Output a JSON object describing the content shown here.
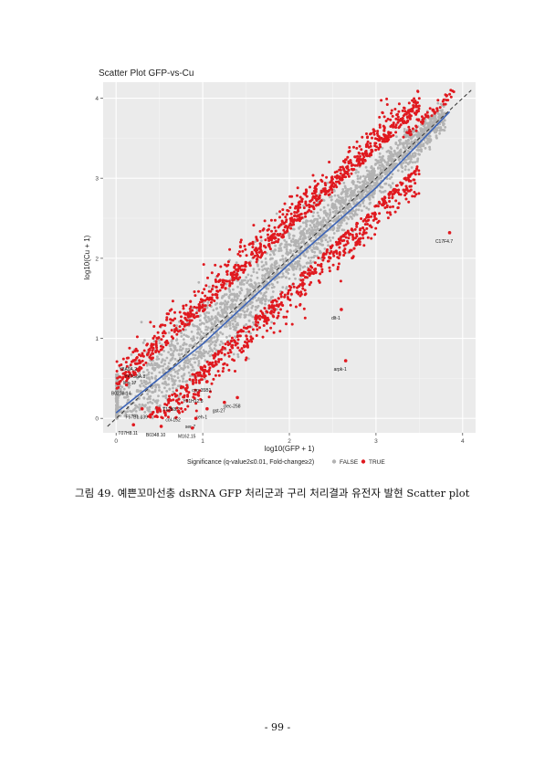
{
  "chart_data": {
    "type": "scatter",
    "title": "Scatter Plot GFP-vs-Cu",
    "xlabel": "log10(GFP + 1)",
    "ylabel": "log10(Cu + 1)",
    "xlim": [
      -0.15,
      4.15
    ],
    "ylim": [
      -0.18,
      4.2
    ],
    "x_ticks": [
      0,
      1,
      2,
      3,
      4
    ],
    "y_ticks": [
      0,
      1,
      2,
      3,
      4
    ],
    "grid": true,
    "background": "#ebebeb",
    "reference_line": {
      "style": "dashed",
      "slope": 1,
      "intercept": 0
    },
    "fit_line": {
      "color": "#3b63b6",
      "points": [
        [
          0,
          0.07
        ],
        [
          1,
          0.93
        ],
        [
          2,
          1.93
        ],
        [
          3,
          2.88
        ],
        [
          3.85,
          3.83
        ]
      ]
    },
    "legend": {
      "title": "Significance (q-value2≤0.01, Fold-change≥2)",
      "placement": "bottom",
      "items": [
        {
          "label": "FALSE",
          "color": "#b3b3b3"
        },
        {
          "label": "TRUE",
          "color": "#e0191f"
        }
      ]
    },
    "series": [
      {
        "name": "FALSE",
        "color": "#b3b3b3",
        "distribution": "dense band around the diagonal, x 0 to 3.8"
      },
      {
        "name": "TRUE",
        "color": "#e0191f",
        "distribution": "points off the diagonal (fold-change ≥ 2), x 0 to 3.9"
      }
    ],
    "annotations": [
      {
        "label": "C17F4.7",
        "x": 3.85,
        "y": 2.32
      },
      {
        "label": "dlt-1",
        "x": 2.6,
        "y": 1.36
      },
      {
        "label": "arpk-1",
        "x": 2.65,
        "y": 0.72
      },
      {
        "label": "Y8A9A.2",
        "x": 0.2,
        "y": 0.72
      },
      {
        "label": "Y47G6A.8",
        "x": 0.28,
        "y": 0.63
      },
      {
        "label": "lips-17",
        "x": 0.22,
        "y": 0.55
      },
      {
        "label": "B0238.14",
        "x": 0.12,
        "y": 0.42
      },
      {
        "label": "clec-258",
        "x": 1.4,
        "y": 0.26
      },
      {
        "label": "cyp-35B1",
        "x": 1.05,
        "y": 0.46
      },
      {
        "label": "Y51H12.8",
        "x": 0.95,
        "y": 0.32
      },
      {
        "label": "gst-27",
        "x": 1.25,
        "y": 0.2
      },
      {
        "label": "T12B3.2",
        "x": 0.7,
        "y": 0.22
      },
      {
        "label": "F57B1.139",
        "x": 0.3,
        "y": 0.12
      },
      {
        "label": "col-152",
        "x": 0.72,
        "y": 0.09
      },
      {
        "label": "ceh-1",
        "x": 1.05,
        "y": 0.12
      },
      {
        "label": "ser-7",
        "x": 0.92,
        "y": 0.0
      },
      {
        "label": "T07H8.11",
        "x": 0.2,
        "y": -0.08
      },
      {
        "label": "B0348.10",
        "x": 0.52,
        "y": -0.1
      },
      {
        "label": "M162.15",
        "x": 0.88,
        "y": -0.12
      }
    ]
  },
  "caption": "그림 49. 예쁜꼬마선충 dsRNA GFP 처리군과 구리 처리결과 유전자 발현 Scatter plot",
  "page_number": "- 99 -"
}
